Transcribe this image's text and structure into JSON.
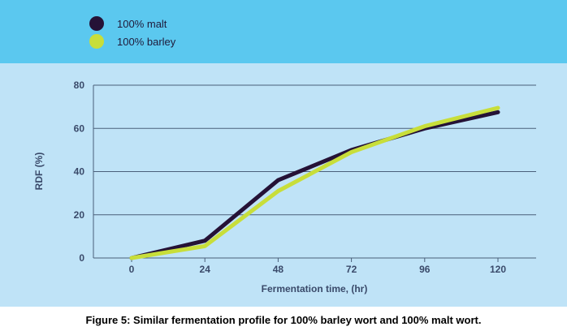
{
  "colors": {
    "header_band": "#5bc8ef",
    "plot_background": "#bfe3f7",
    "malt": "#251236",
    "barley": "#c8de3a",
    "axis_text": "#3a4a6a"
  },
  "caption": "Figure 5: Similar fermentation profile for 100% barley wort and 100% malt wort.",
  "chart_data": {
    "type": "line",
    "title": "",
    "xlabel": "Fermentation time, (hr)",
    "ylabel": "RDF (%)",
    "x": [
      0,
      24,
      48,
      72,
      96,
      120
    ],
    "xticks": [
      "0",
      "24",
      "48",
      "72",
      "96",
      "120"
    ],
    "yticks": [
      "0",
      "20",
      "40",
      "60",
      "80"
    ],
    "xlim": [
      0,
      120
    ],
    "ylim": [
      0,
      80
    ],
    "grid": "horizontal",
    "legend_position": "top-left",
    "series": [
      {
        "name": "100% malt",
        "values": [
          0,
          8,
          36,
          50,
          60,
          67.5
        ]
      },
      {
        "name": "100% barley",
        "values": [
          0,
          5.5,
          31,
          49,
          61,
          69.5
        ]
      }
    ]
  }
}
